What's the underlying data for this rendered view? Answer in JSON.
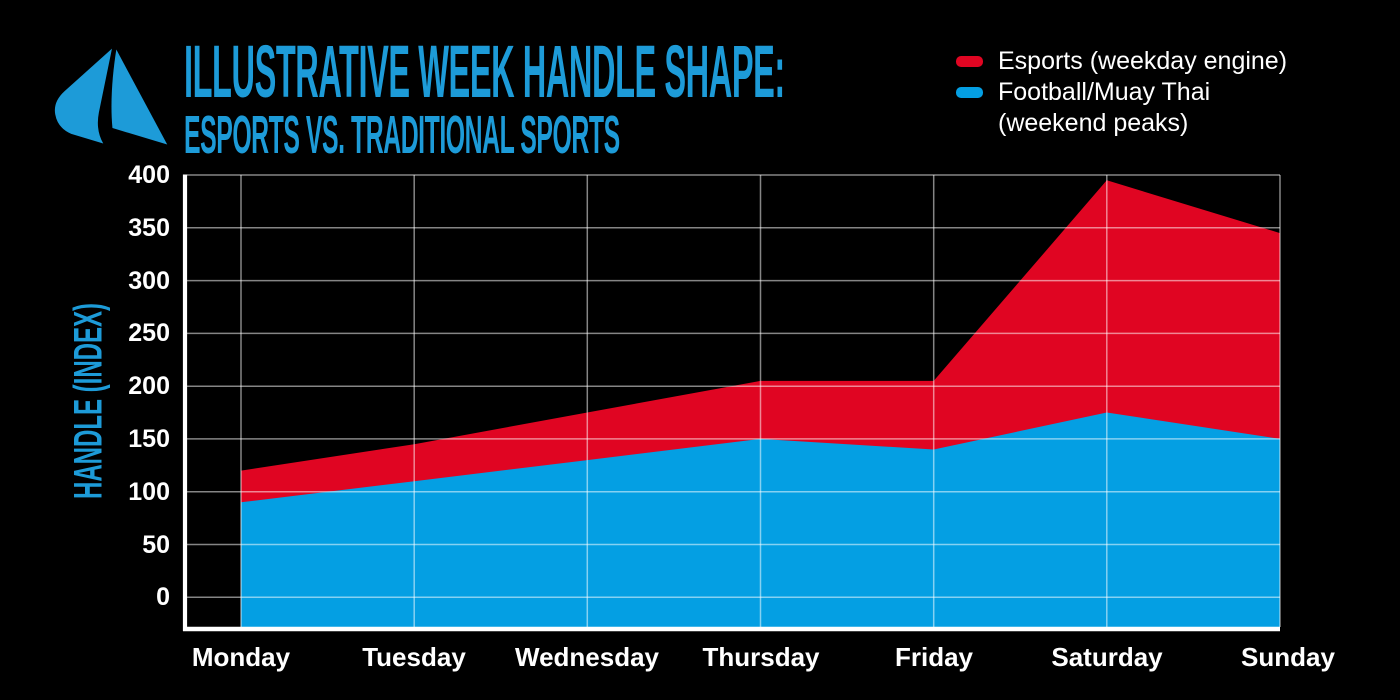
{
  "header": {
    "title_line1": "ILLUSTRATIVE WEEK HANDLE SHAPE:",
    "title_line2": "ESPORTS VS. TRADITIONAL SPORTS",
    "logo": "abstract-letter-a-mark"
  },
  "legend": {
    "items": [
      {
        "label": "Esports (weekday engine)",
        "color": "#e00522"
      },
      {
        "label_line1": "Football/Muay Thai",
        "label_line2": "(weekend peaks)",
        "color": "#049fe3"
      }
    ],
    "position": "top-right"
  },
  "colors": {
    "background": "#000000",
    "title_blue": "#1d9bd8",
    "esports_red": "#e00522",
    "football_blue": "#049fe3",
    "axis_white": "#ffffff",
    "gridline": "rgba(255,255,255,0.52)",
    "text_white": "#ffffff"
  },
  "chart_data": {
    "type": "area",
    "stacked": true,
    "categories": [
      "Monday",
      "Tuesday",
      "Wednesday",
      "Thursday",
      "Friday",
      "Saturday",
      "Sunday"
    ],
    "series": [
      {
        "name": "Football/Muay Thai (weekend peaks)",
        "color": "#049fe3",
        "values": [
          90,
          110,
          130,
          150,
          140,
          175,
          150
        ]
      },
      {
        "name": "Esports (weekday engine)",
        "color": "#e00522",
        "values": [
          30,
          35,
          45,
          55,
          65,
          220,
          195
        ]
      }
    ],
    "stacked_totals": [
      120,
      145,
      175,
      205,
      205,
      395,
      345
    ],
    "title": "ILLUSTRATIVE WEEK HANDLE SHAPE: ESPORTS VS. TRADITIONAL SPORTS",
    "xlabel": "",
    "ylabel": "HANDLE (INDEX)",
    "yticks": [
      0,
      50,
      100,
      150,
      200,
      250,
      300,
      350,
      400
    ],
    "ylim": [
      -32,
      400
    ],
    "grid": true,
    "legend_position": "top-right"
  }
}
